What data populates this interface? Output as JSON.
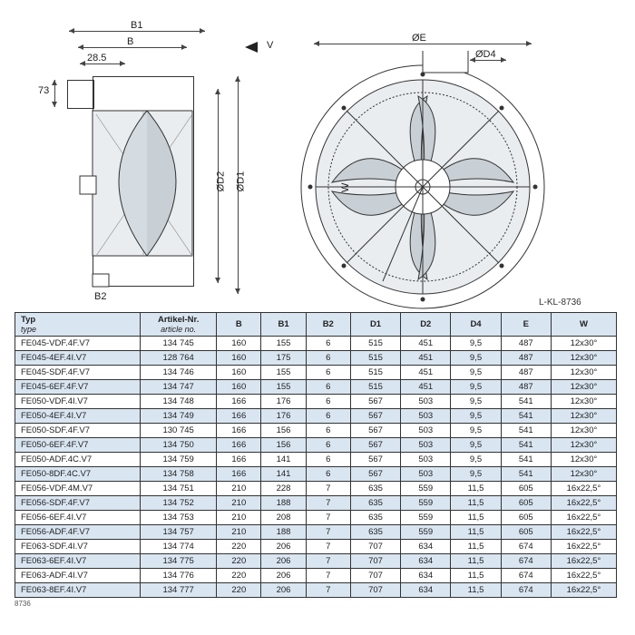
{
  "diagram": {
    "labels": {
      "B": "B",
      "B1": "B1",
      "B2": "B2",
      "D1": "ØD1",
      "D2": "ØD2",
      "D4": "ØD4",
      "E": "ØE",
      "W": "W",
      "V": "V",
      "dim285": "28.5",
      "dim73": "73"
    },
    "ref": "L-KL-8736",
    "circle_fill": "#e9edf0",
    "stroke": "#333",
    "dim_color": "#444"
  },
  "table": {
    "headers": {
      "type": "Typ",
      "type_sub": "type",
      "article": "Artikel-Nr.",
      "article_sub": "article no.",
      "B": "B",
      "B1": "B1",
      "B2": "B2",
      "D1": "D1",
      "D2": "D2",
      "D4": "D4",
      "E": "E",
      "W": "W"
    },
    "rows": [
      {
        "type": "FE045-VDF.4F.V7",
        "art": "134 745",
        "B": "160",
        "B1": "155",
        "B2": "6",
        "D1": "515",
        "D2": "451",
        "D4": "9,5",
        "E": "487",
        "W": "12x30°",
        "shade": false
      },
      {
        "type": "FE045-4EF.4I.V7",
        "art": "128 764",
        "B": "160",
        "B1": "175",
        "B2": "6",
        "D1": "515",
        "D2": "451",
        "D4": "9,5",
        "E": "487",
        "W": "12x30°",
        "shade": true
      },
      {
        "type": "FE045-SDF.4F.V7",
        "art": "134 746",
        "B": "160",
        "B1": "155",
        "B2": "6",
        "D1": "515",
        "D2": "451",
        "D4": "9,5",
        "E": "487",
        "W": "12x30°",
        "shade": false
      },
      {
        "type": "FE045-6EF.4F.V7",
        "art": "134 747",
        "B": "160",
        "B1": "155",
        "B2": "6",
        "D1": "515",
        "D2": "451",
        "D4": "9,5",
        "E": "487",
        "W": "12x30°",
        "shade": true
      },
      {
        "type": "FE050-VDF.4I.V7",
        "art": "134 748",
        "B": "166",
        "B1": "176",
        "B2": "6",
        "D1": "567",
        "D2": "503",
        "D4": "9,5",
        "E": "541",
        "W": "12x30°",
        "shade": false
      },
      {
        "type": "FE050-4EF.4I.V7",
        "art": "134 749",
        "B": "166",
        "B1": "176",
        "B2": "6",
        "D1": "567",
        "D2": "503",
        "D4": "9,5",
        "E": "541",
        "W": "12x30°",
        "shade": true
      },
      {
        "type": "FE050-SDF.4F.V7",
        "art": "130 745",
        "B": "166",
        "B1": "156",
        "B2": "6",
        "D1": "567",
        "D2": "503",
        "D4": "9,5",
        "E": "541",
        "W": "12x30°",
        "shade": false
      },
      {
        "type": "FE050-6EF.4F.V7",
        "art": "134 750",
        "B": "166",
        "B1": "156",
        "B2": "6",
        "D1": "567",
        "D2": "503",
        "D4": "9,5",
        "E": "541",
        "W": "12x30°",
        "shade": true
      },
      {
        "type": "FE050-ADF.4C.V7",
        "art": "134 759",
        "B": "166",
        "B1": "141",
        "B2": "6",
        "D1": "567",
        "D2": "503",
        "D4": "9,5",
        "E": "541",
        "W": "12x30°",
        "shade": false
      },
      {
        "type": "FE050-8DF.4C.V7",
        "art": "134 758",
        "B": "166",
        "B1": "141",
        "B2": "6",
        "D1": "567",
        "D2": "503",
        "D4": "9,5",
        "E": "541",
        "W": "12x30°",
        "shade": true
      },
      {
        "type": "FE056-VDF.4M.V7",
        "art": "134 751",
        "B": "210",
        "B1": "228",
        "B2": "7",
        "D1": "635",
        "D2": "559",
        "D4": "11,5",
        "E": "605",
        "W": "16x22,5°",
        "shade": false
      },
      {
        "type": "FE056-SDF.4F.V7",
        "art": "134 752",
        "B": "210",
        "B1": "188",
        "B2": "7",
        "D1": "635",
        "D2": "559",
        "D4": "11,5",
        "E": "605",
        "W": "16x22,5°",
        "shade": true
      },
      {
        "type": "FE056-6EF.4I.V7",
        "art": "134 753",
        "B": "210",
        "B1": "208",
        "B2": "7",
        "D1": "635",
        "D2": "559",
        "D4": "11,5",
        "E": "605",
        "W": "16x22,5°",
        "shade": false
      },
      {
        "type": "FE056-ADF.4F.V7",
        "art": "134 757",
        "B": "210",
        "B1": "188",
        "B2": "7",
        "D1": "635",
        "D2": "559",
        "D4": "11,5",
        "E": "605",
        "W": "16x22,5°",
        "shade": true
      },
      {
        "type": "FE063-SDF.4I.V7",
        "art": "134 774",
        "B": "220",
        "B1": "206",
        "B2": "7",
        "D1": "707",
        "D2": "634",
        "D4": "11,5",
        "E": "674",
        "W": "16x22,5°",
        "shade": false
      },
      {
        "type": "FE063-6EF.4I.V7",
        "art": "134 775",
        "B": "220",
        "B1": "206",
        "B2": "7",
        "D1": "707",
        "D2": "634",
        "D4": "11,5",
        "E": "674",
        "W": "16x22,5°",
        "shade": true
      },
      {
        "type": "FE063-ADF.4I.V7",
        "art": "134 776",
        "B": "220",
        "B1": "206",
        "B2": "7",
        "D1": "707",
        "D2": "634",
        "D4": "11,5",
        "E": "674",
        "W": "16x22,5°",
        "shade": false
      },
      {
        "type": "FE063-8EF.4I.V7",
        "art": "134 777",
        "B": "220",
        "B1": "206",
        "B2": "7",
        "D1": "707",
        "D2": "634",
        "D4": "11,5",
        "E": "674",
        "W": "16x22,5°",
        "shade": true
      }
    ],
    "footer": "8736"
  }
}
